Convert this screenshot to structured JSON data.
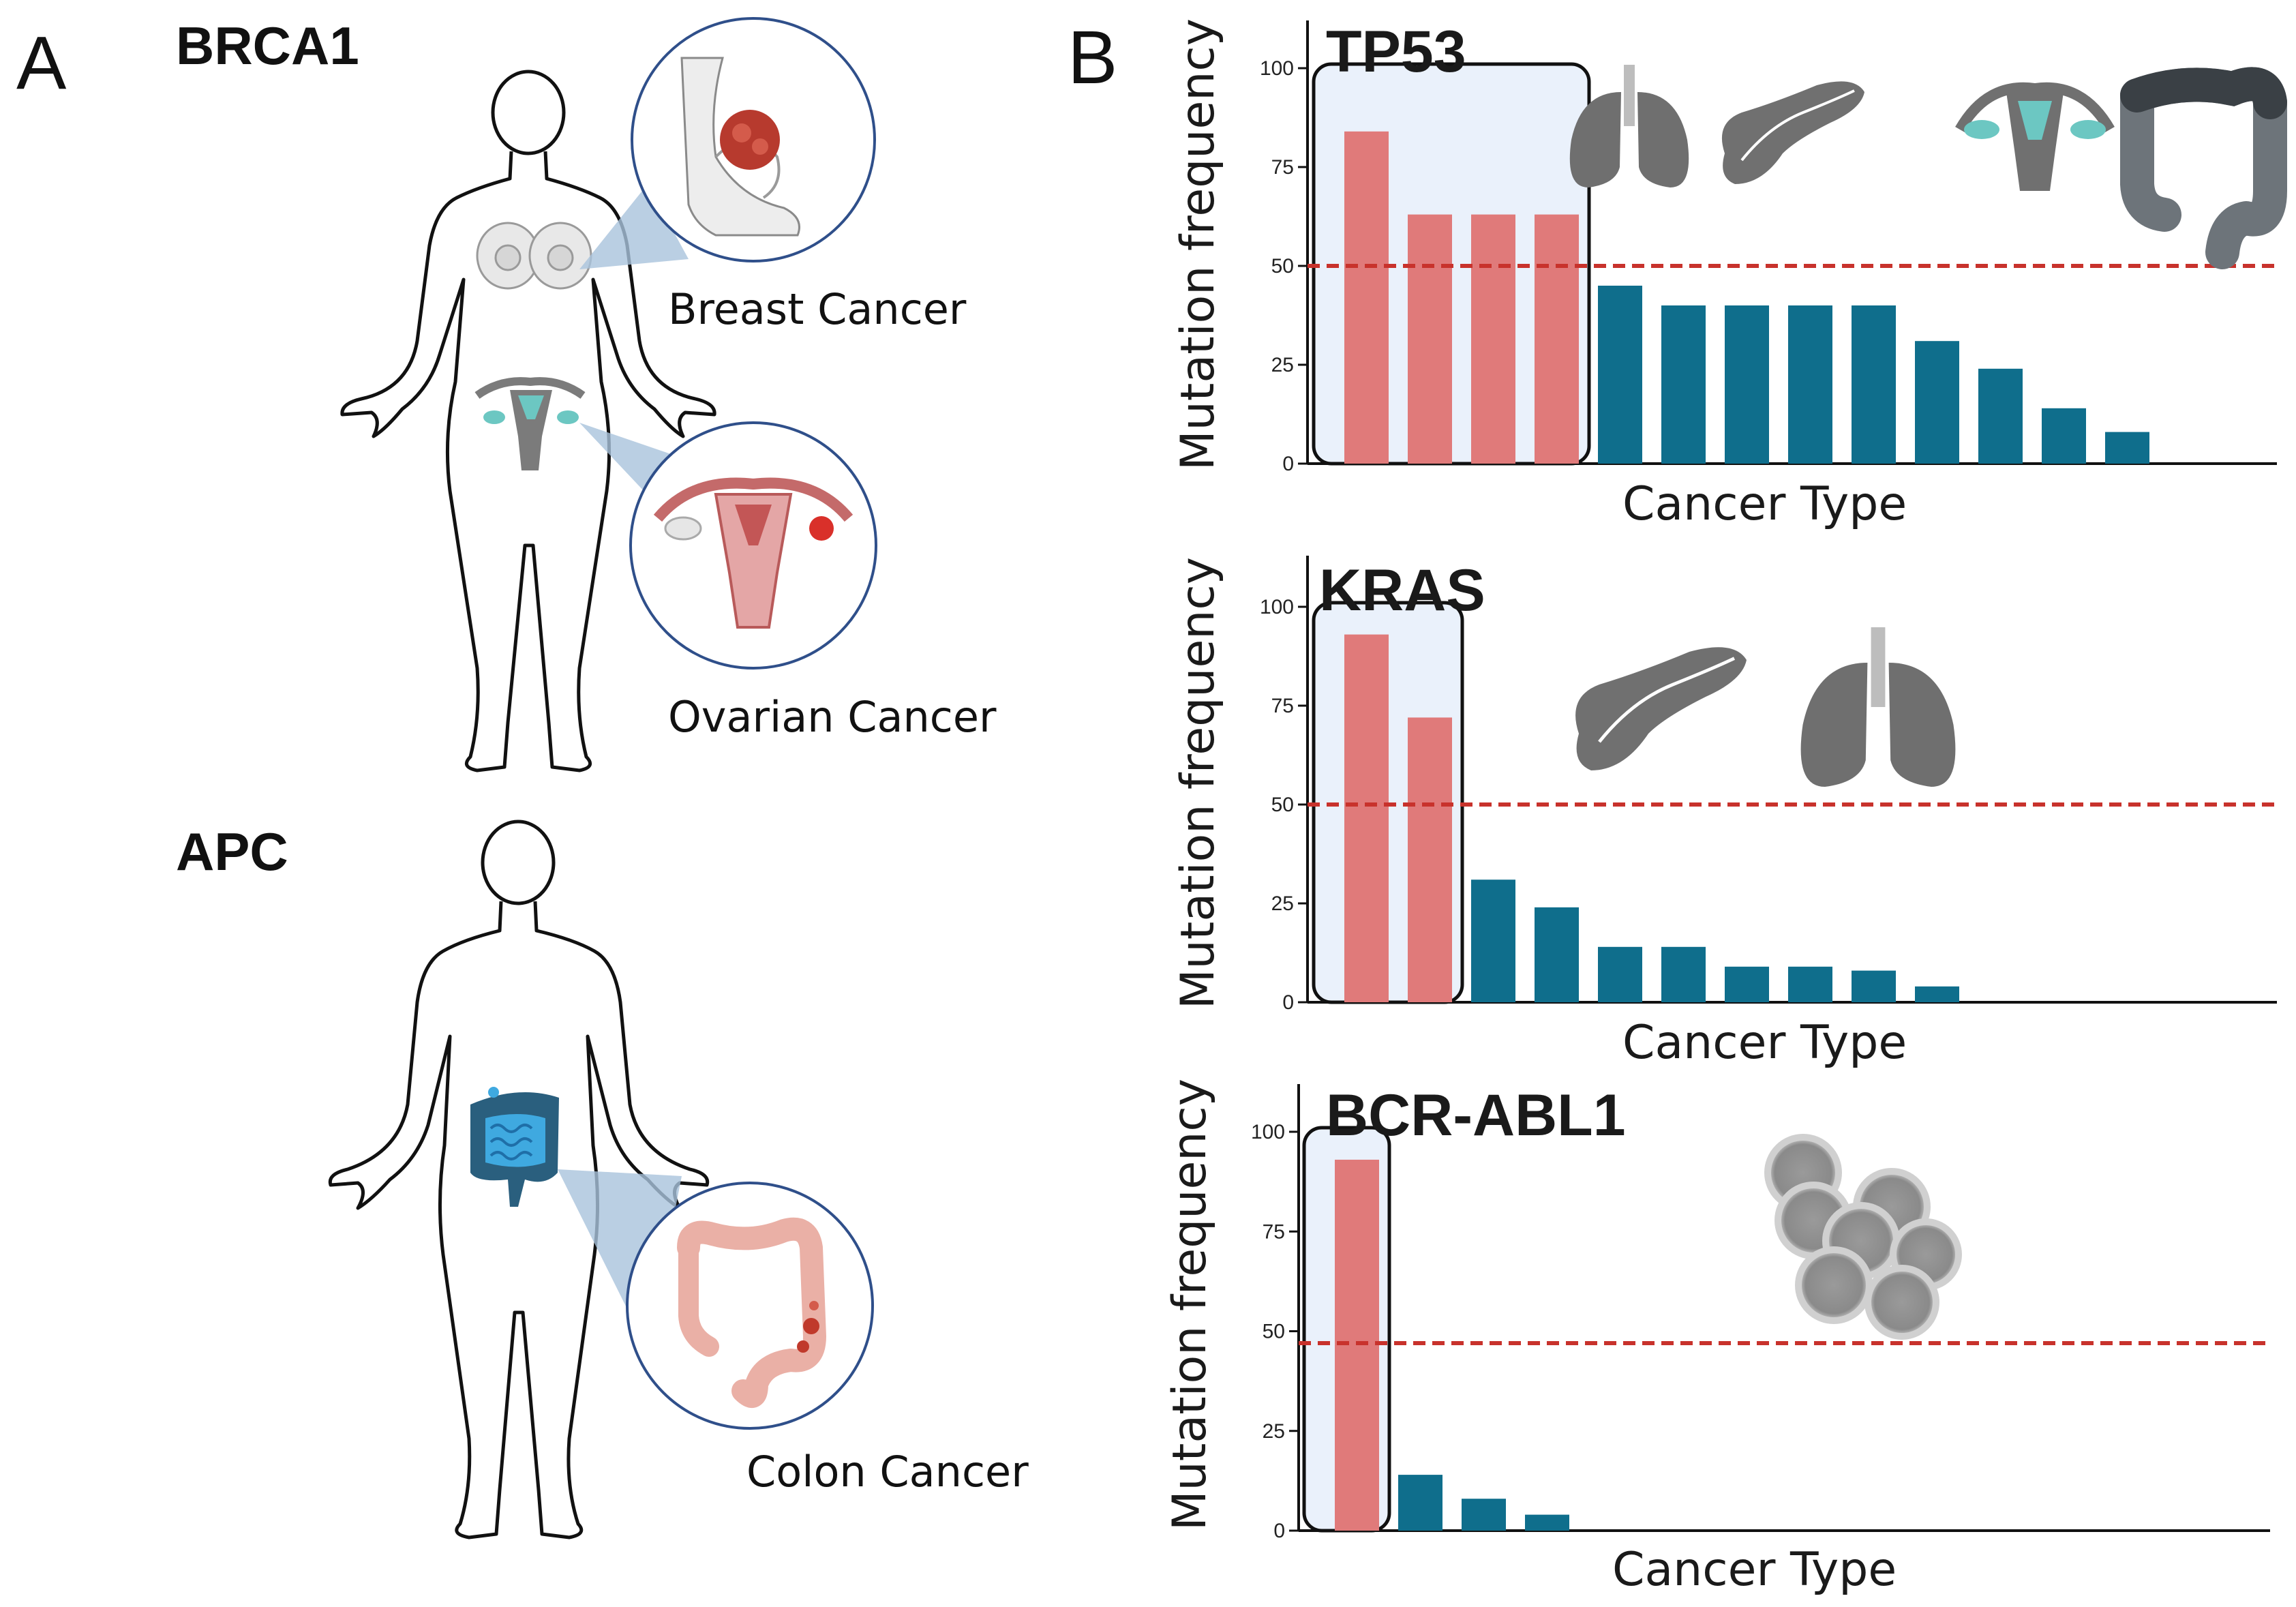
{
  "figure": {
    "panel_a_letter": "A",
    "panel_b_letter": "B",
    "colors": {
      "highlight_bar": "#e07a7a",
      "other_bar": "#0f6e8c",
      "threshold": "#c8322c",
      "highlight_box_fill": "#eaf1fb",
      "organ_gray": "#7b7b7b",
      "callout_fill": "#a9c3dc"
    }
  },
  "panel_a": {
    "genes": [
      {
        "gene": "BRCA1",
        "callouts": [
          {
            "caption": "Breast Cancer",
            "icon": "breast-tumor-icon"
          },
          {
            "caption": "Ovarian Cancer",
            "icon": "ovarian-tumor-icon"
          }
        ]
      },
      {
        "gene": "APC",
        "callouts": [
          {
            "caption": "Colon Cancer",
            "icon": "colon-tumor-icon"
          }
        ]
      }
    ]
  },
  "chart_data": [
    {
      "type": "bar",
      "title": "TP53",
      "xlabel": "Cancer Type",
      "ylabel": "Mutation frequency",
      "ylim": [
        0,
        110
      ],
      "yticks": [
        0,
        25,
        50,
        75,
        100
      ],
      "threshold": 50,
      "values": [
        84,
        63,
        63,
        63,
        45,
        40,
        40,
        40,
        40,
        31,
        24,
        14,
        8
      ],
      "highlighted_count": 4,
      "slots": 17,
      "organ_icons": [
        "lung-icon",
        "pancreas-icon",
        "uterus-icon",
        "colon-icon"
      ]
    },
    {
      "type": "bar",
      "title": "KRAS",
      "xlabel": "Cancer Type",
      "ylabel": "Mutation frequency",
      "ylim": [
        0,
        110
      ],
      "yticks": [
        0,
        25,
        50,
        75,
        100
      ],
      "threshold": 50,
      "values": [
        93,
        72,
        31,
        24,
        14,
        14,
        9,
        9,
        8,
        4
      ],
      "highlighted_count": 2,
      "slots": 17,
      "organ_icons": [
        "pancreas-icon",
        "lung-icon"
      ]
    },
    {
      "type": "bar",
      "title": "BCR-ABL1",
      "xlabel": "Cancer Type",
      "ylabel": "Mutation frequency",
      "ylim": [
        0,
        110
      ],
      "yticks": [
        0,
        25,
        50,
        75,
        100
      ],
      "threshold": 47,
      "values": [
        93,
        14,
        8,
        4
      ],
      "highlighted_count": 1,
      "slots": 17,
      "organ_icons": [
        "blood-cells-icon"
      ]
    }
  ]
}
